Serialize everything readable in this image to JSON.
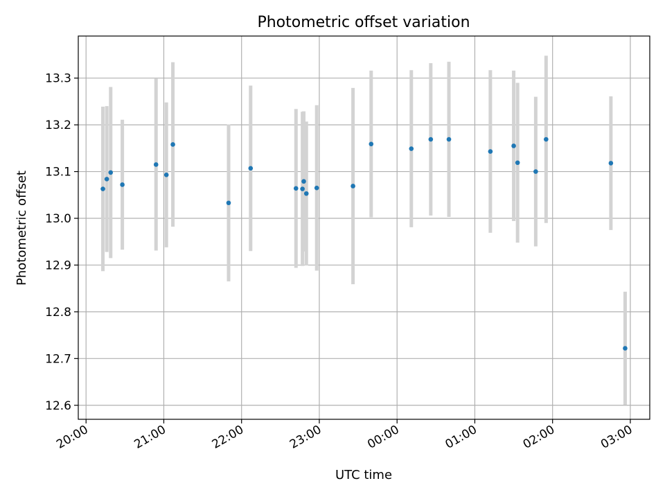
{
  "chart_data": {
    "type": "scatter",
    "title": "Photometric offset variation",
    "xlabel": "UTC time",
    "ylabel": "Photometric offset",
    "x_ticks": [
      "20:00",
      "21:00",
      "22:00",
      "23:00",
      "00:00",
      "01:00",
      "02:00",
      "03:00"
    ],
    "y_ticks": [
      "12.6",
      "12.7",
      "12.8",
      "12.9",
      "13.0",
      "13.1",
      "13.2",
      "13.3"
    ],
    "ylim": [
      12.57,
      13.39
    ],
    "xlim": [
      "19:54",
      "03:15"
    ],
    "grid": true,
    "colors": {
      "point": "#1f77b4",
      "errorbar": "#d3d3d3",
      "grid": "#b0b0b0"
    },
    "series": [
      {
        "points": [
          {
            "t": "20:13",
            "y": 13.063,
            "err": 0.176
          },
          {
            "t": "20:16",
            "y": 13.084,
            "err": 0.156
          },
          {
            "t": "20:19",
            "y": 13.098,
            "err": 0.183
          },
          {
            "t": "20:28",
            "y": 13.072,
            "err": 0.139
          },
          {
            "t": "20:54",
            "y": 13.115,
            "err": 0.184
          },
          {
            "t": "21:02",
            "y": 13.093,
            "err": 0.155
          },
          {
            "t": "21:07",
            "y": 13.158,
            "err": 0.176
          },
          {
            "t": "21:50",
            "y": 13.033,
            "err": 0.168
          },
          {
            "t": "22:07",
            "y": 13.107,
            "err": 0.177
          },
          {
            "t": "22:42",
            "y": 13.064,
            "err": 0.17
          },
          {
            "t": "22:47",
            "y": 13.063,
            "err": 0.165
          },
          {
            "t": "22:48",
            "y": 13.079,
            "err": 0.15
          },
          {
            "t": "22:50",
            "y": 13.053,
            "err": 0.154
          },
          {
            "t": "22:58",
            "y": 13.065,
            "err": 0.177
          },
          {
            "t": "23:26",
            "y": 13.069,
            "err": 0.21
          },
          {
            "t": "23:40",
            "y": 13.159,
            "err": 0.157
          },
          {
            "t": "00:11",
            "y": 13.149,
            "err": 0.168
          },
          {
            "t": "00:26",
            "y": 13.169,
            "err": 0.163
          },
          {
            "t": "00:40",
            "y": 13.169,
            "err": 0.166
          },
          {
            "t": "01:12",
            "y": 13.143,
            "err": 0.174
          },
          {
            "t": "01:30",
            "y": 13.155,
            "err": 0.161
          },
          {
            "t": "01:33",
            "y": 13.119,
            "err": 0.171
          },
          {
            "t": "01:47",
            "y": 13.1,
            "err": 0.16
          },
          {
            "t": "01:55",
            "y": 13.169,
            "err": 0.179
          },
          {
            "t": "02:45",
            "y": 13.118,
            "err": 0.143
          },
          {
            "t": "02:56",
            "y": 12.722,
            "err": 0.121
          }
        ]
      }
    ]
  }
}
